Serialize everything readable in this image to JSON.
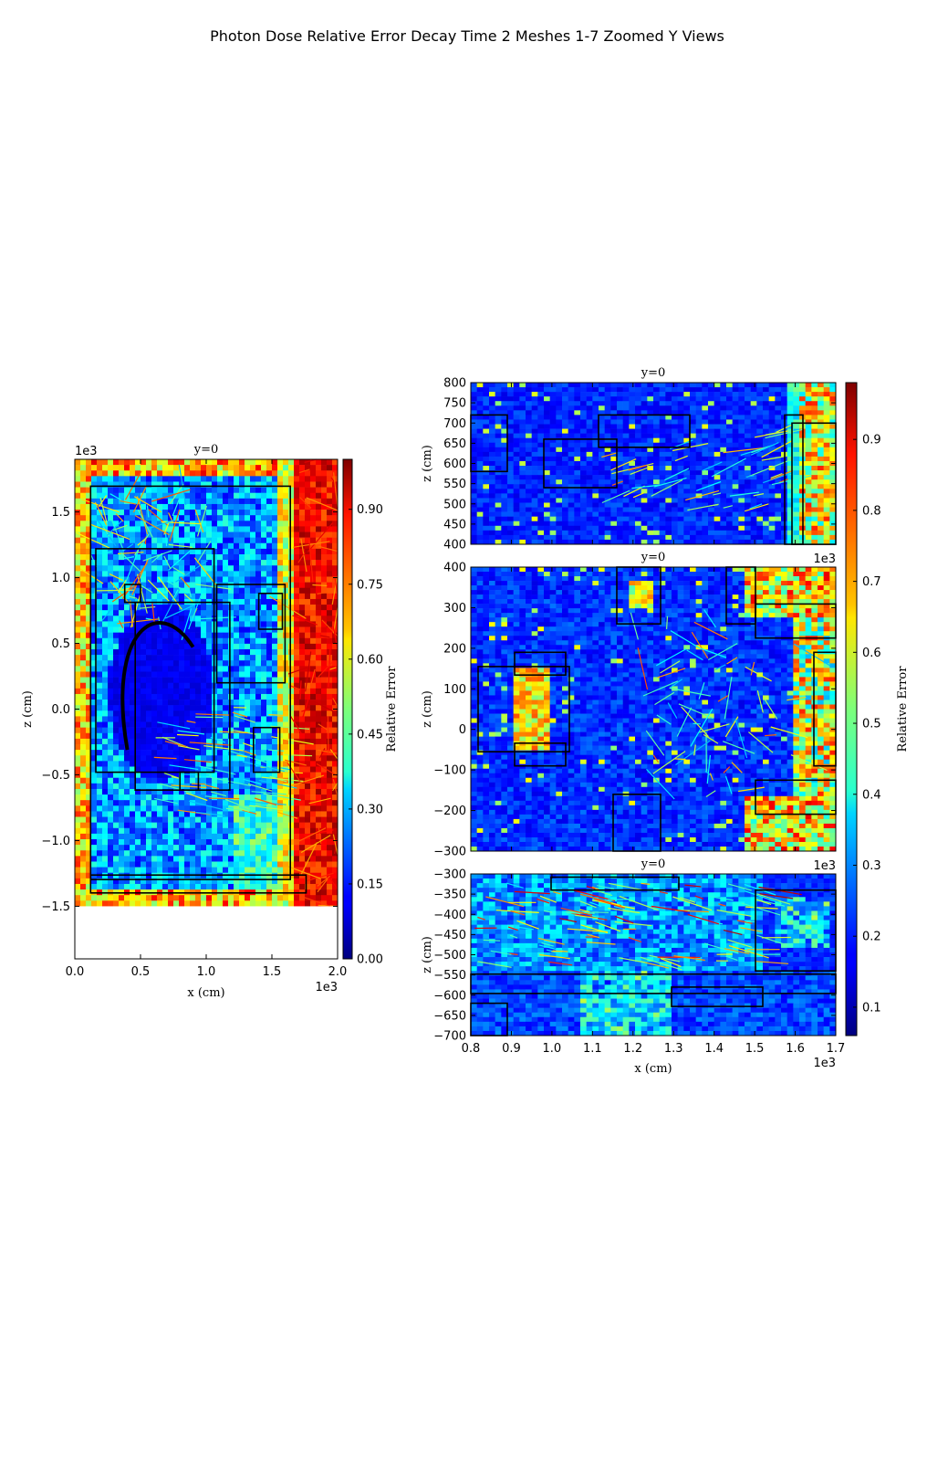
{
  "chart_data": {
    "type": "heatmap",
    "title": "Photon Dose Relative Error Decay Time 2 Meshes 1-7 Zoomed Y Views",
    "colormap": "jet",
    "panels": [
      {
        "id": "full",
        "title": "y=0",
        "xlabel": "x  (cm)",
        "ylabel": "z  (cm)",
        "xlim": [
          0,
          2000
        ],
        "ylim": [
          -1900,
          1900
        ],
        "xticks": [
          "0.0",
          "0.5",
          "1.0",
          "1.5",
          "2.0"
        ],
        "xtick_values": [
          0,
          500,
          1000,
          1500,
          2000
        ],
        "yticks": [
          "1.5",
          "1.0",
          "0.5",
          "0.0",
          "−0.5",
          "−1.0",
          "−1.5"
        ],
        "ytick_values": [
          1500,
          1000,
          500,
          0,
          -500,
          -1000,
          -1500
        ],
        "x_offset": "1e3",
        "y_offset": "1e3",
        "data_ylim": [
          -1500,
          1900
        ],
        "colorbar": {
          "label": "Relative Error",
          "range": [
            0.0,
            1.0
          ],
          "ticks": [
            "0.00",
            "0.15",
            "0.30",
            "0.45",
            "0.60",
            "0.75",
            "0.90"
          ],
          "tick_values": [
            0.0,
            0.15,
            0.3,
            0.45,
            0.6,
            0.75,
            0.9
          ]
        }
      },
      {
        "id": "zoom-top",
        "title": "y=0",
        "ylabel": "z  (cm)",
        "xlim": [
          800,
          1700
        ],
        "ylim": [
          400,
          800
        ],
        "yticks": [
          "800",
          "750",
          "700",
          "650",
          "600",
          "550",
          "500",
          "450",
          "400"
        ],
        "ytick_values": [
          800,
          750,
          700,
          650,
          600,
          550,
          500,
          450,
          400
        ]
      },
      {
        "id": "zoom-middle",
        "title": "y=0",
        "ylabel": "z  (cm)",
        "xlim": [
          800,
          1700
        ],
        "ylim": [
          -300,
          400
        ],
        "x_offset": "1e3",
        "yticks": [
          "400",
          "300",
          "200",
          "100",
          "0",
          "−100",
          "−200",
          "−300"
        ],
        "ytick_values": [
          400,
          300,
          200,
          100,
          0,
          -100,
          -200,
          -300
        ]
      },
      {
        "id": "zoom-bottom",
        "title": "y=0",
        "xlabel": "x  (cm)",
        "ylabel": "z  (cm)",
        "xlim": [
          800,
          1700
        ],
        "ylim": [
          -700,
          -300
        ],
        "x_offset": "1e3",
        "xticks": [
          "0.8",
          "0.9",
          "1.0",
          "1.1",
          "1.2",
          "1.3",
          "1.4",
          "1.5",
          "1.6",
          "1.7"
        ],
        "xtick_values": [
          800,
          900,
          1000,
          1100,
          1200,
          1300,
          1400,
          1500,
          1600,
          1700
        ],
        "yticks": [
          "−300",
          "−350",
          "−400",
          "−450",
          "−500",
          "−550",
          "−600",
          "−650",
          "−700"
        ],
        "ytick_values": [
          -300,
          -350,
          -400,
          -450,
          -500,
          -550,
          -600,
          -650,
          -700
        ]
      }
    ],
    "shared_colorbar": {
      "label": "Relative Error",
      "range": [
        0.06,
        0.98
      ],
      "ticks": [
        "0.1",
        "0.2",
        "0.3",
        "0.4",
        "0.5",
        "0.6",
        "0.7",
        "0.8",
        "0.9"
      ],
      "tick_values": [
        0.1,
        0.2,
        0.3,
        0.4,
        0.5,
        0.6,
        0.7,
        0.8,
        0.9
      ]
    }
  }
}
